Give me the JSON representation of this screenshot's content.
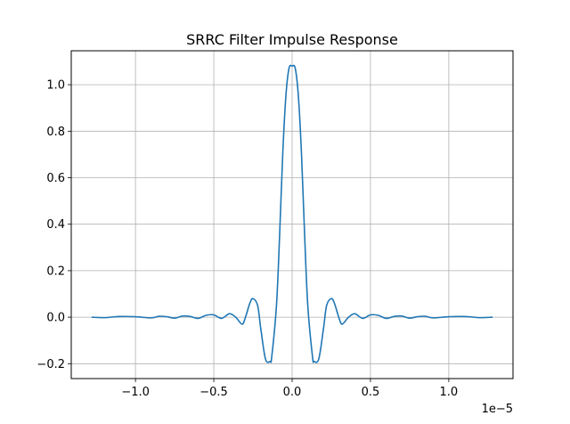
{
  "chart_data": {
    "type": "line",
    "title": "SRRC Filter Impulse Response",
    "xlabel": "",
    "ylabel": "",
    "x_offset_label": "1e−5",
    "xlim": [
      -1.41e-05,
      1.41e-05
    ],
    "ylim": [
      -0.264,
      1.146
    ],
    "x_ticks": [
      -1e-05,
      -5e-06,
      0.0,
      5e-06,
      1e-05
    ],
    "x_tick_labels": [
      "−1.0",
      "−0.5",
      "0.0",
      "0.5",
      "1.0"
    ],
    "y_ticks": [
      -0.2,
      0.0,
      0.2,
      0.4,
      0.6,
      0.8,
      1.0
    ],
    "y_tick_labels": [
      "−0.2",
      "0.0",
      "0.2",
      "0.4",
      "0.6",
      "0.8",
      "1.0"
    ],
    "grid": true,
    "line_color": "#1f77b4",
    "series": [
      {
        "x": [
          -1.28e-05,
          -1.2e-05,
          -1.1e-05,
          -1e-05,
          -9e-06,
          -8.5e-06,
          -8e-06,
          -7.5e-06,
          -7e-06,
          -6.5e-06,
          -6e-06,
          -5.5e-06,
          -5e-06,
          -4.5e-06,
          -4e-06,
          -3.6e-06,
          -3.2e-06,
          -3e-06,
          -2.7e-06,
          -2.5e-06,
          -2.2e-06,
          -2e-06,
          -1.7e-06,
          -1.4e-06,
          -1.3e-06,
          -1e-06,
          -8e-07,
          -6e-07,
          -4e-07,
          -2e-07,
          0.0,
          2e-07,
          4e-07,
          6e-07,
          8e-07,
          1e-06,
          1.3e-06,
          1.4e-06,
          1.7e-06,
          2e-06,
          2.2e-06,
          2.5e-06,
          2.7e-06,
          3e-06,
          3.2e-06,
          3.6e-06,
          4e-06,
          4.5e-06,
          5e-06,
          5.5e-06,
          6e-06,
          6.5e-06,
          7e-06,
          7.5e-06,
          8e-06,
          8.5e-06,
          9e-06,
          1e-05,
          1.1e-05,
          1.2e-05,
          1.28e-05
        ],
        "y": [
          0.0,
          -0.002,
          0.003,
          0.002,
          -0.003,
          0.004,
          0.002,
          -0.004,
          0.005,
          0.003,
          -0.005,
          0.008,
          0.01,
          -0.005,
          0.015,
          0.0,
          -0.03,
          -0.005,
          0.06,
          0.08,
          0.05,
          -0.05,
          -0.18,
          -0.19,
          -0.17,
          0.05,
          0.35,
          0.7,
          0.95,
          1.07,
          1.08,
          1.07,
          0.95,
          0.7,
          0.35,
          0.05,
          -0.17,
          -0.19,
          -0.18,
          -0.05,
          0.05,
          0.08,
          0.06,
          -0.005,
          -0.03,
          0.0,
          0.015,
          -0.005,
          0.01,
          0.008,
          -0.005,
          0.003,
          0.005,
          -0.004,
          0.002,
          0.004,
          -0.003,
          0.002,
          0.003,
          -0.002,
          0.0
        ]
      }
    ]
  }
}
